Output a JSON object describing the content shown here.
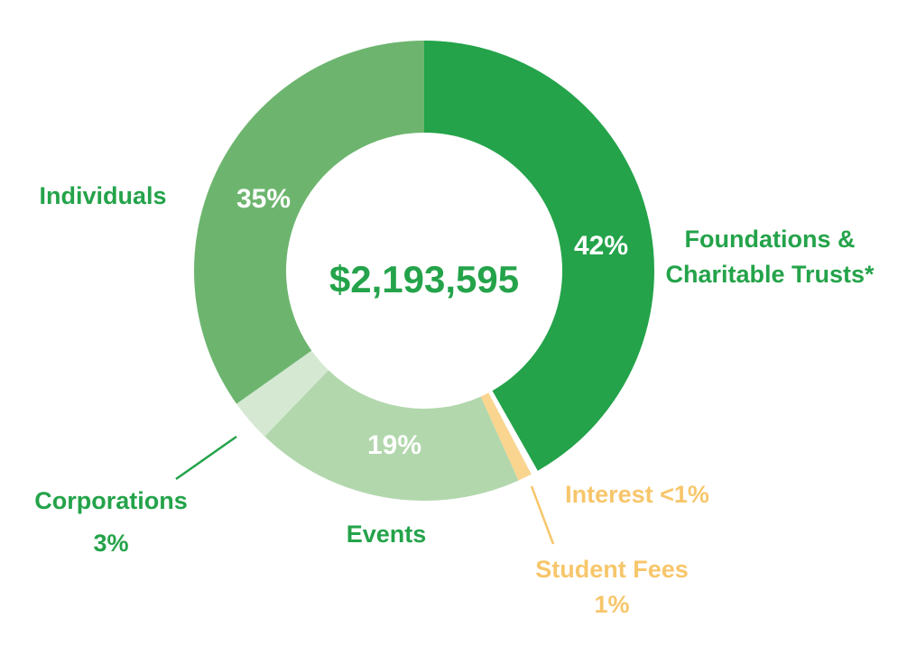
{
  "chart_data": {
    "type": "pie",
    "donut": true,
    "center_label": "$2,193,595",
    "slices": [
      {
        "name": "Foundations & Charitable Trusts*",
        "name_lines": [
          "Foundations &",
          "Charitable Trusts*"
        ],
        "value": 42,
        "value_label": "42%",
        "color": "#24a34a",
        "label_color": "#24a34a"
      },
      {
        "name": "Interest",
        "name_lines": [
          "Interest <1%"
        ],
        "value": 0.5,
        "value_label": "<1%",
        "color": "#ffffff",
        "label_color": "#f7c66b"
      },
      {
        "name": "Student Fees",
        "name_lines": [
          "Student Fees",
          "1%"
        ],
        "value": 1,
        "value_label": "1%",
        "color": "#f9d58f",
        "label_color": "#f7c66b"
      },
      {
        "name": "Events",
        "name_lines": [
          "Events"
        ],
        "value": 19,
        "value_label": "19%",
        "color": "#b2d7ad",
        "label_color": "#24a34a"
      },
      {
        "name": "Corporations",
        "name_lines": [
          "Corporations",
          "3%"
        ],
        "value": 3,
        "value_label": "3%",
        "color": "#d4e8d2",
        "label_color": "#24a34a"
      },
      {
        "name": "Individuals",
        "name_lines": [
          "Individuals"
        ],
        "value": 35,
        "value_label": "35%",
        "color": "#6db56f",
        "label_color": "#24a34a"
      }
    ],
    "slice_value_labels": [
      "42%",
      "19%",
      "35%"
    ],
    "colors": {
      "accent": "#24a34a",
      "callout_gold": "#f7c66b"
    }
  }
}
